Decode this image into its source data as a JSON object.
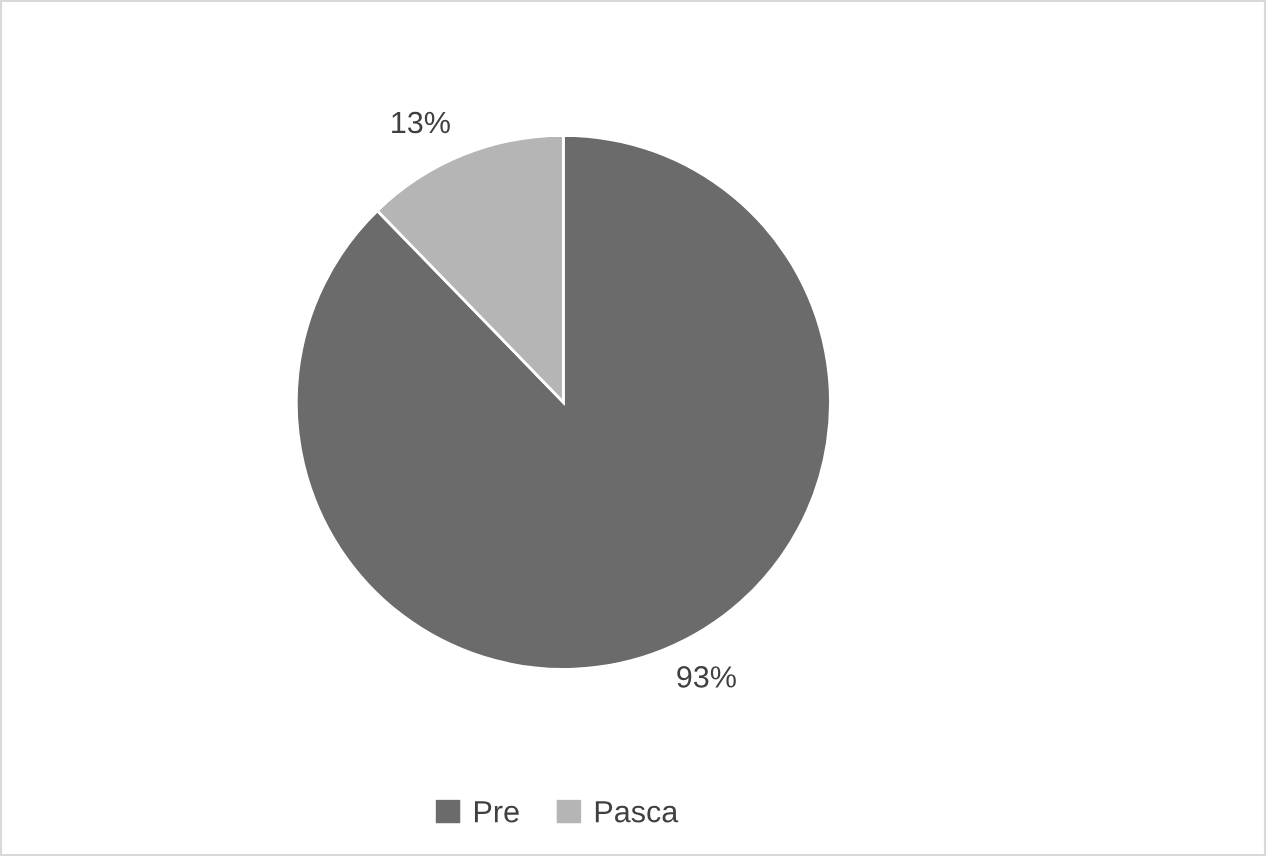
{
  "chart_data": {
    "type": "pie",
    "categories": [
      "Pre",
      "Pasca"
    ],
    "values": [
      93,
      13
    ],
    "colors": [
      "#6b6b6b",
      "#b5b5b5"
    ],
    "value_labels": [
      "93%",
      "13%"
    ],
    "legend": "bottom"
  }
}
